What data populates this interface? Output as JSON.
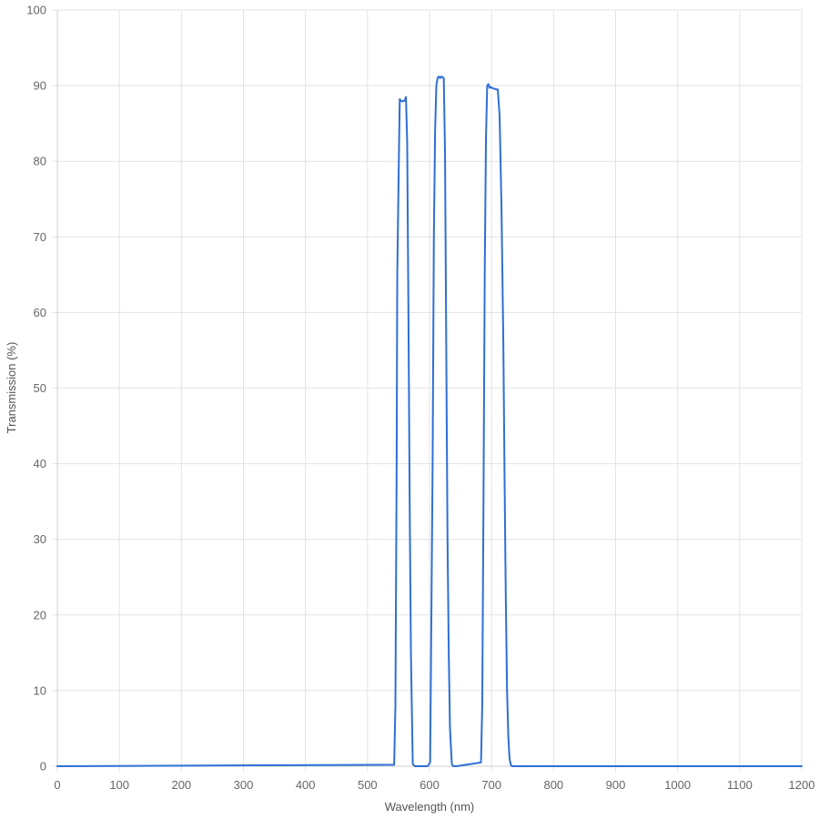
{
  "chart_data": {
    "type": "line",
    "title": "",
    "xlabel": "Wavelength (nm)",
    "ylabel": "Transmission (%)",
    "xlim": [
      0,
      1200
    ],
    "ylim": [
      0,
      100
    ],
    "x_ticks": [
      0,
      100,
      200,
      300,
      400,
      500,
      600,
      700,
      800,
      900,
      1000,
      1100,
      1200
    ],
    "y_ticks": [
      0,
      10,
      20,
      30,
      40,
      50,
      60,
      70,
      80,
      90,
      100
    ],
    "grid": true,
    "colors": {
      "series": "#2f6fd6"
    },
    "series": [
      {
        "x": [
          0,
          543,
          545,
          547,
          548,
          550,
          552,
          554,
          556,
          558,
          560,
          562,
          564,
          566,
          568,
          570,
          573,
          576,
          597,
          601,
          602,
          605,
          607,
          609,
          611,
          613,
          615,
          617,
          619,
          621,
          623,
          625,
          627,
          629,
          631,
          633,
          636,
          638,
          641,
          643,
          683,
          685,
          687,
          689,
          691,
          693,
          695,
          697,
          699,
          701,
          703,
          705,
          707,
          710,
          713,
          716,
          719,
          721,
          723,
          725,
          727,
          729,
          731,
          733,
          735,
          737,
          740,
          1200
        ],
        "y": [
          0,
          0.2,
          8,
          40,
          65,
          77,
          88.2,
          88,
          87.9,
          88,
          88,
          88.5,
          82.5,
          60,
          35,
          15,
          0.3,
          0,
          0,
          0.5,
          10,
          40,
          70,
          84,
          90,
          91,
          91.2,
          91,
          91.2,
          91.1,
          91,
          81,
          55,
          30,
          15,
          5,
          0.3,
          0,
          0,
          0,
          0.5,
          8,
          35,
          65,
          83,
          90,
          90.2,
          89.7,
          89.8,
          89.7,
          89.6,
          89.6,
          89.5,
          89.5,
          86,
          74,
          56,
          38,
          22,
          10,
          4,
          1,
          0.2,
          0,
          0,
          0,
          0,
          0
        ]
      }
    ]
  }
}
